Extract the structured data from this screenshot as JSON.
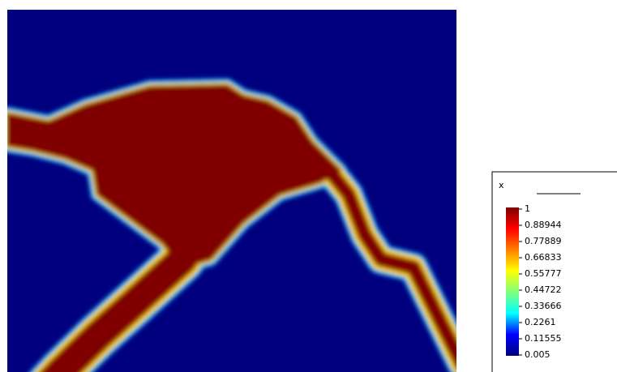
{
  "chart_data": {
    "type": "heatmap",
    "colorbar": {
      "title": "x",
      "lim": [
        0.005,
        1
      ],
      "ticks": [
        1,
        0.88944,
        0.77889,
        0.66833,
        0.55777,
        0.44722,
        0.33666,
        0.2261,
        0.11555,
        0.005
      ],
      "colormap": [
        "#00007f",
        "#0000ff",
        "#00ffff",
        "#7fff7f",
        "#ffff00",
        "#ff7f00",
        "#ff0000",
        "#7f0000"
      ]
    }
  }
}
